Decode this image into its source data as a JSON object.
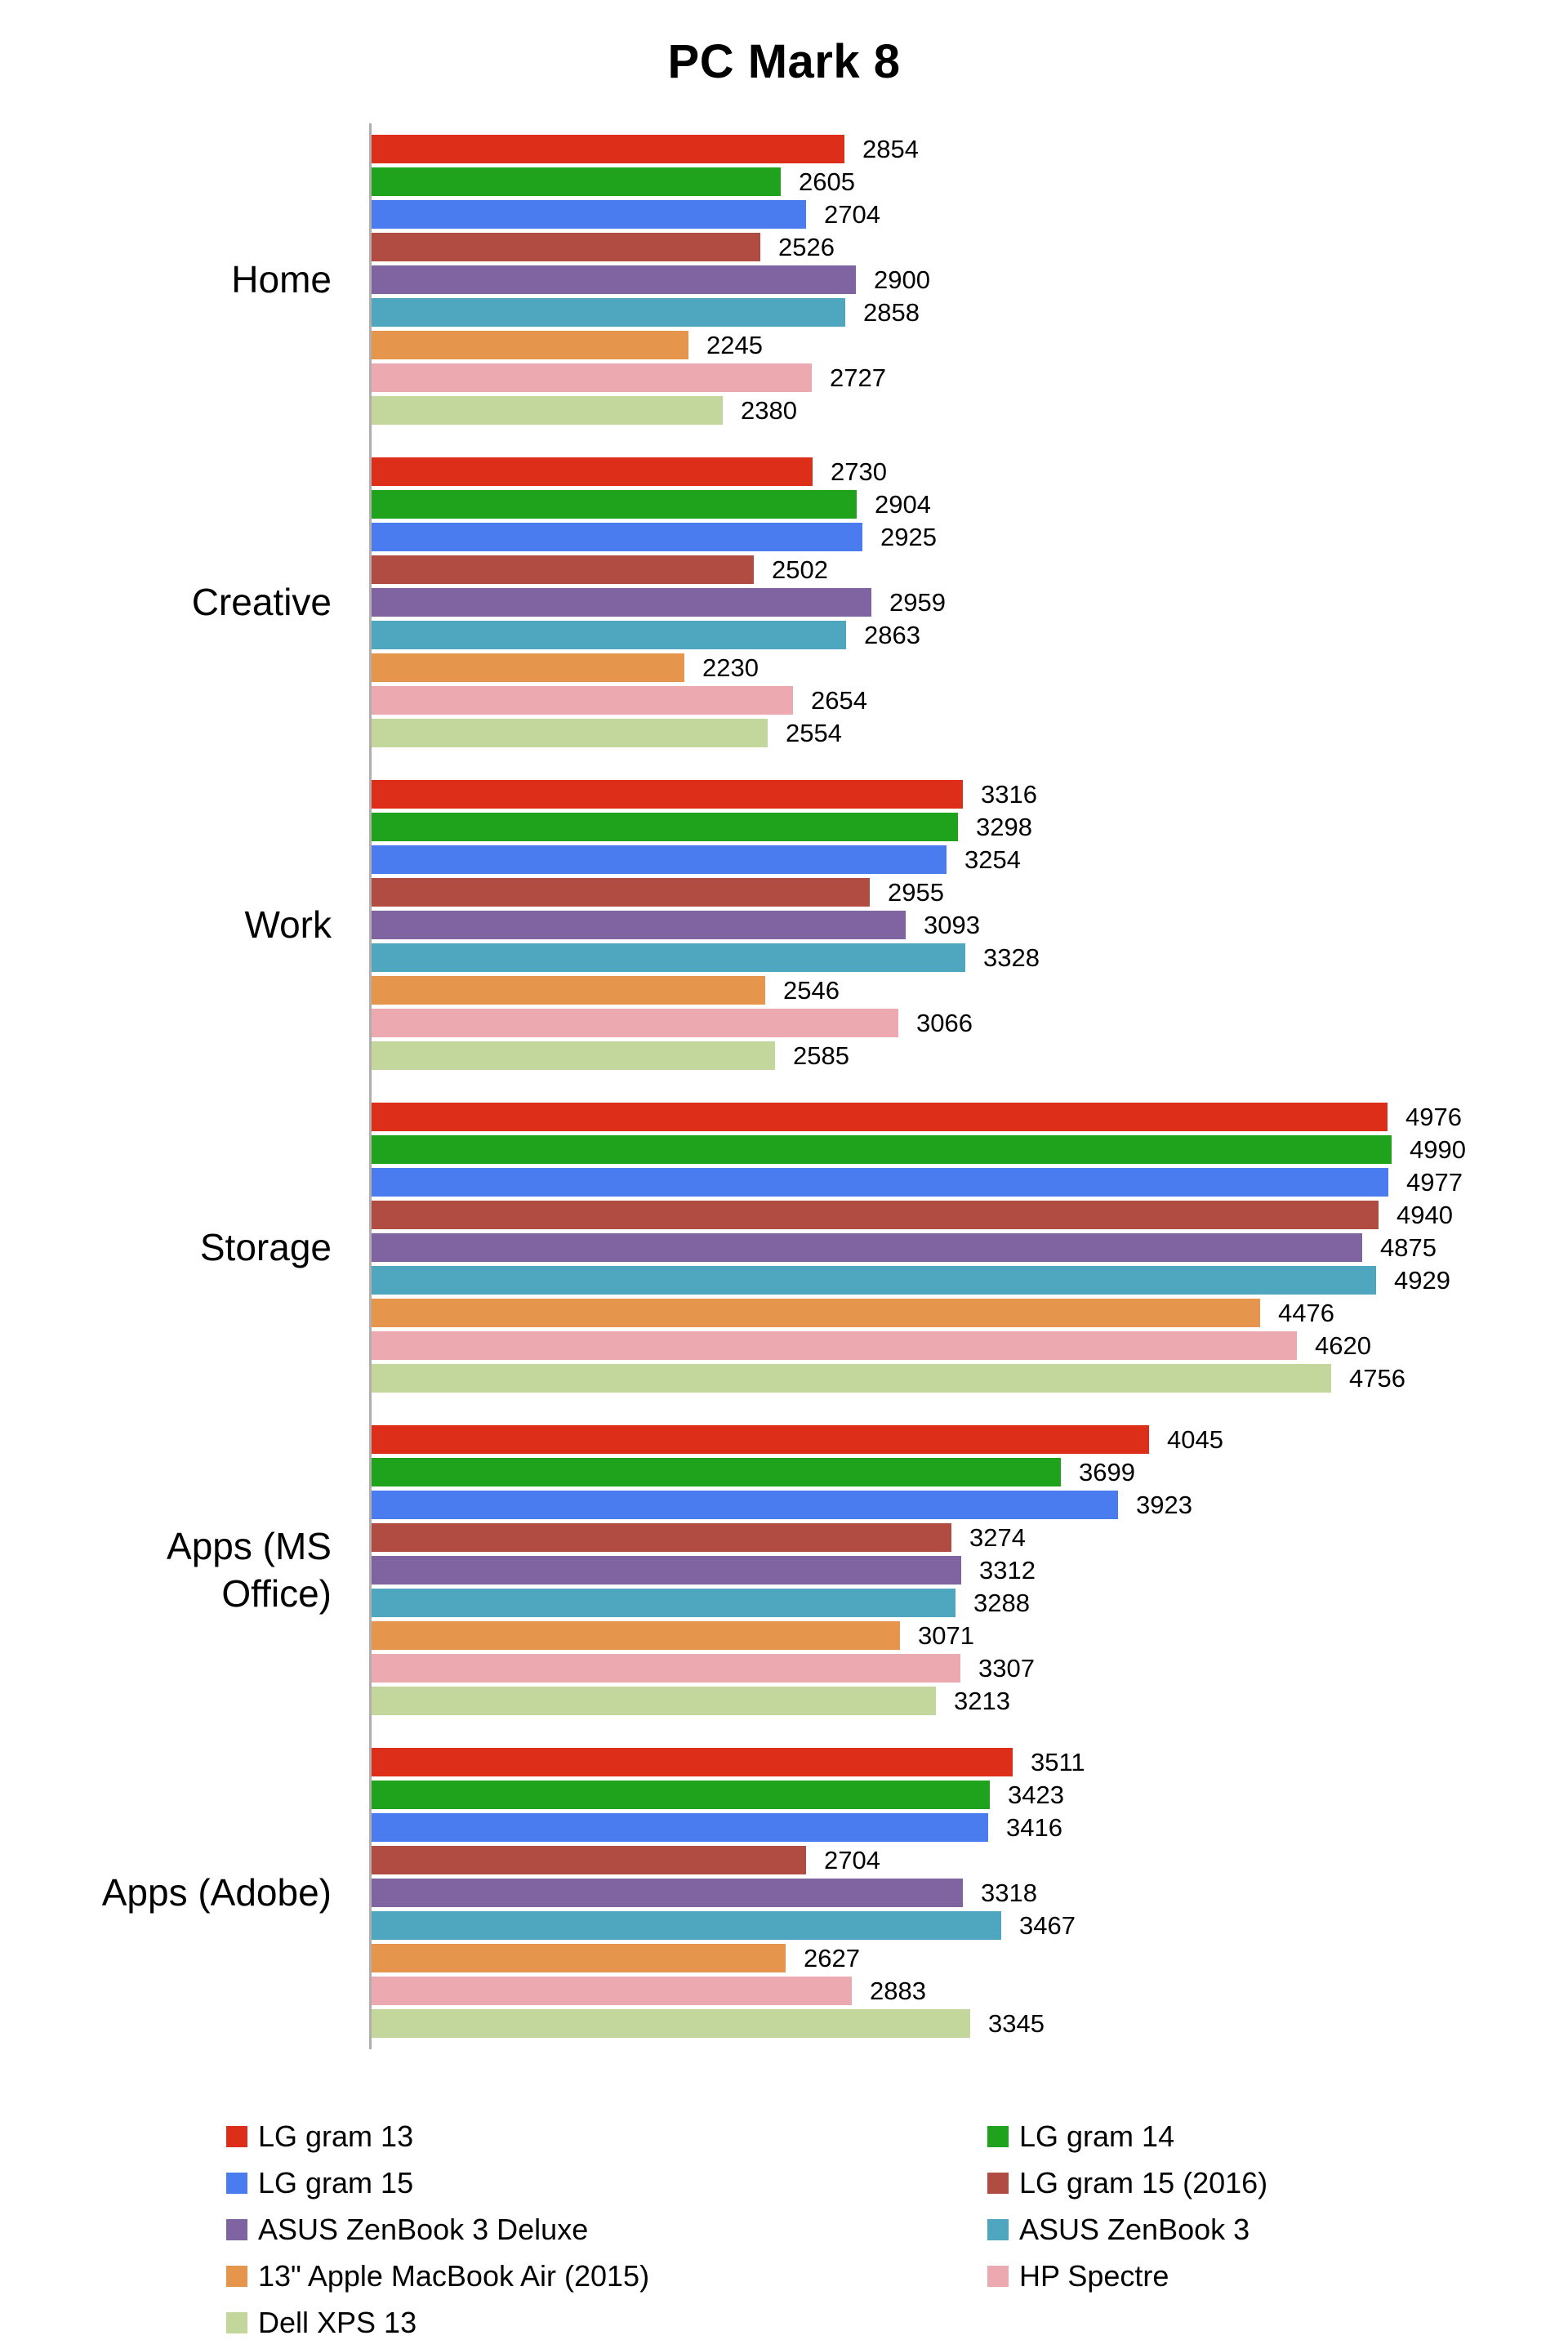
{
  "title": "PC Mark 8",
  "chart_data": {
    "type": "bar",
    "orientation": "horizontal",
    "title": "PC Mark 8",
    "grid": false,
    "legend_position": "bottom",
    "value_axis": {
      "min": 1000,
      "max": 5335
    },
    "categories": [
      "Home",
      "Creative",
      "Work",
      "Storage",
      "Apps (MS Office)",
      "Apps (Adobe)"
    ],
    "series": [
      {
        "name": "LG gram 13",
        "color": "#dd2e1a",
        "values": [
          2854,
          2730,
          3316,
          4976,
          4045,
          3511
        ]
      },
      {
        "name": "LG gram 14",
        "color": "#1fa21c",
        "values": [
          2605,
          2904,
          3298,
          4990,
          3699,
          3423
        ]
      },
      {
        "name": "LG gram 15",
        "color": "#4a7cf0",
        "values": [
          2704,
          2925,
          3254,
          4977,
          3923,
          3416
        ]
      },
      {
        "name": "LG gram 15 (2016)",
        "color": "#b04c41",
        "values": [
          2526,
          2502,
          2955,
          4940,
          3274,
          2704
        ]
      },
      {
        "name": "ASUS ZenBook 3 Deluxe",
        "color": "#8064a2",
        "values": [
          2900,
          2959,
          3093,
          4875,
          3312,
          3318
        ]
      },
      {
        "name": "ASUS ZenBook 3",
        "color": "#4ea6bf",
        "values": [
          2858,
          2863,
          3328,
          4929,
          3288,
          3467
        ]
      },
      {
        "name": "13\" Apple MacBook Air (2015)",
        "color": "#e6954c",
        "values": [
          2245,
          2230,
          2546,
          4476,
          3071,
          2627
        ]
      },
      {
        "name": "HP Spectre",
        "color": "#ecaab0",
        "values": [
          2727,
          2654,
          3066,
          4620,
          3307,
          2883
        ]
      },
      {
        "name": "Dell XPS 13",
        "color": "#c3d69b",
        "values": [
          2380,
          2554,
          2585,
          4756,
          3213,
          3345
        ]
      }
    ]
  }
}
